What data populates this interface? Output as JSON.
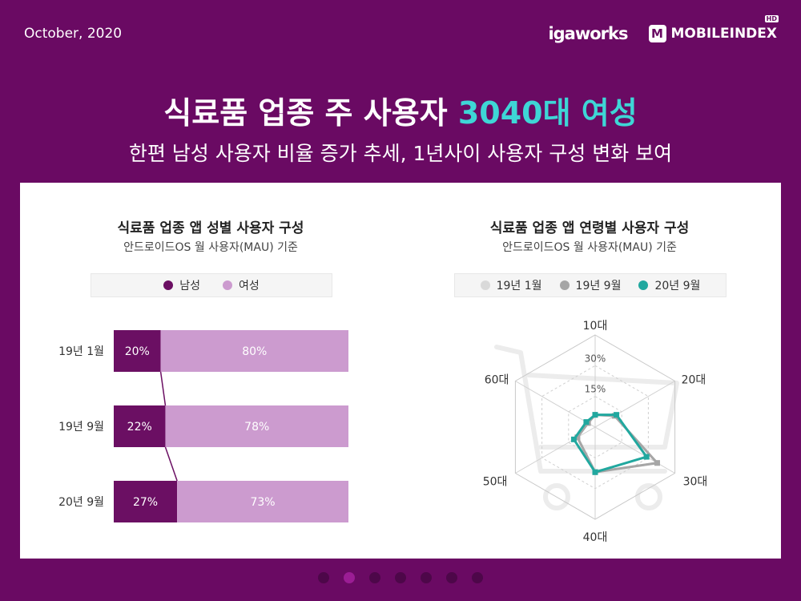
{
  "header": {
    "date": "October, 2020",
    "logo_igaworks": "igaworks",
    "logo_mobileindex_m": "M",
    "logo_mobileindex": "MOBILEINDEX",
    "logo_hd": "HD"
  },
  "title": {
    "main": "식료품 업종 주 사용자 ",
    "highlight": "3040대 여성"
  },
  "subtitle": "한편 남성 사용자 비율 증가 추세, 1년사이 사용자 구성 변화 보여",
  "colors": {
    "male": "#6b0f63",
    "female": "#cc9bcf",
    "jan19": "#d9d9d9",
    "sep19": "#a6a6a6",
    "sep20": "#21a89f"
  },
  "chart_data": [
    {
      "type": "bar",
      "stacked": true,
      "orientation": "horizontal",
      "title": "식료품 업종 앱 성별 사용자 구성",
      "subtitle": "안드로이드OS 월 사용자(MAU) 기준",
      "categories": [
        "19년 1월",
        "19년 9월",
        "20년 9월"
      ],
      "series": [
        {
          "name": "남성",
          "values": [
            20,
            22,
            27
          ],
          "labels": [
            "20%",
            "22%",
            "27%"
          ]
        },
        {
          "name": "여성",
          "values": [
            80,
            78,
            73
          ],
          "labels": [
            "80%",
            "78%",
            "73%"
          ]
        }
      ],
      "legend": "top"
    },
    {
      "type": "radar",
      "title": "식료품 업종 앱 연령별 사용자 구성",
      "subtitle": "안드로이드OS 월 사용자(MAU) 기준",
      "axes": [
        "10대",
        "20대",
        "30대",
        "40대",
        "50대",
        "60대"
      ],
      "ring_labels": [
        "15%",
        "30%"
      ],
      "rmax": 45,
      "series": [
        {
          "name": "19년 1월",
          "values": [
            6,
            11,
            35,
            22,
            10,
            4
          ]
        },
        {
          "name": "19년 9월",
          "values": [
            6,
            11,
            35,
            22,
            10,
            4
          ]
        },
        {
          "name": "20년 9월",
          "values": [
            6,
            12,
            29,
            22,
            12,
            5
          ]
        }
      ],
      "legend": "top"
    }
  ],
  "pagination": {
    "count": 7,
    "active": 1
  }
}
